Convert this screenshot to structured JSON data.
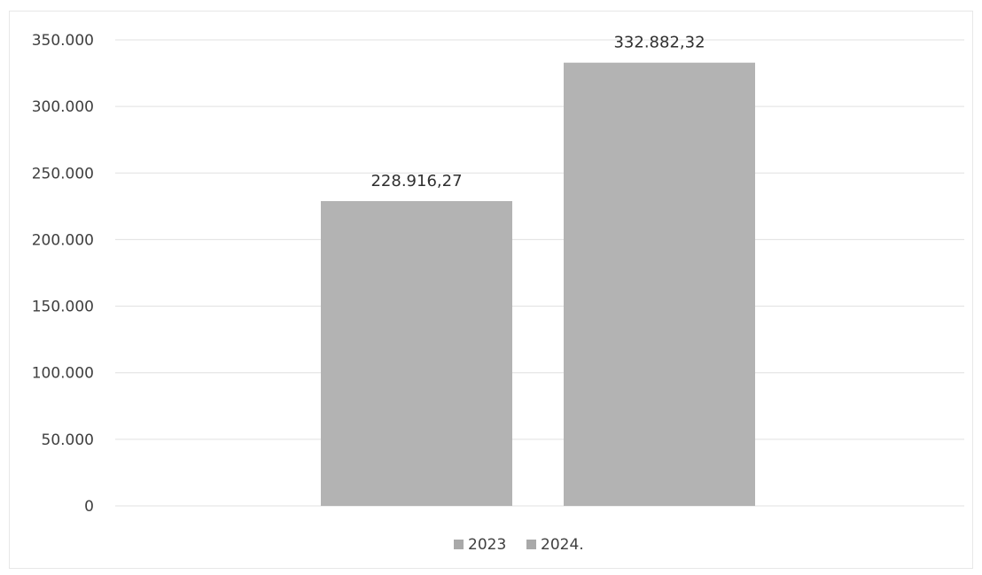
{
  "chart_data": {
    "type": "bar",
    "categories": [
      "2023",
      "2024."
    ],
    "values": [
      228916.27,
      332882.32
    ],
    "data_labels": [
      "228.916,27",
      "332.882,32"
    ],
    "y_ticks": [
      0,
      50000,
      100000,
      150000,
      200000,
      250000,
      300000,
      350000
    ],
    "y_tick_labels": [
      "0",
      "50.000",
      "100.000",
      "150.000",
      "200.000",
      "250.000",
      "300.000",
      "350.000"
    ],
    "ylim": [
      0,
      350000
    ],
    "title": "",
    "xlabel": "",
    "ylabel": "",
    "grid": true,
    "legend": {
      "position": "bottom",
      "entries": [
        "2023",
        "2024."
      ]
    },
    "colors": {
      "bar": "#b3b3b3",
      "grid": "#e0e0e0",
      "legend_swatch": "#a9a9a9"
    }
  }
}
